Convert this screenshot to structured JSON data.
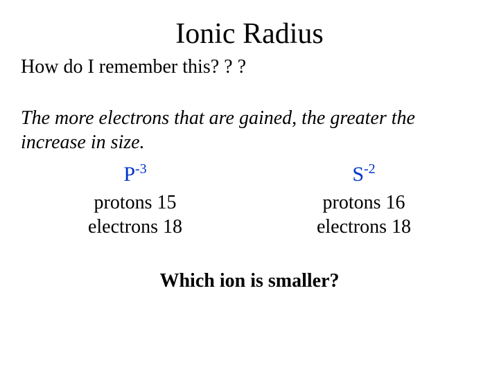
{
  "title": "Ionic Radius",
  "subtitle": "How do I remember this? ? ?",
  "body": "The more electrons that are gained, the greater the increase in size.",
  "ions": {
    "left": {
      "symbol": "P",
      "charge": "-3",
      "protons": "protons 15",
      "electrons": "electrons 18"
    },
    "right": {
      "symbol": "S",
      "charge": "-2",
      "protons": "protons 16",
      "electrons": "electrons 18"
    }
  },
  "question": "Which ion is smaller?",
  "colors": {
    "text": "#000000",
    "ion": "#0033cc",
    "background": "#ffffff"
  },
  "fonts": {
    "title_pt": 42,
    "body_pt": 28,
    "family": "Times New Roman"
  }
}
